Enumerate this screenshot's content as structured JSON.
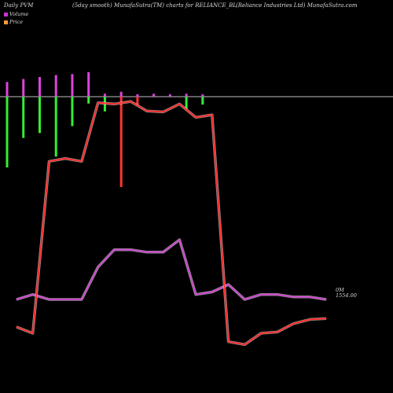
{
  "header": {
    "left": "Daily PVM",
    "center": "(5day smooth) MunafaSutra(TM) charts for RELIANCE_BL",
    "right": "(Reliance  Industries Ltd) MunafaSutra.com"
  },
  "legend": [
    {
      "label": "Volume",
      "color": "#cc33cc"
    },
    {
      "label": "Price",
      "color": "#ff9933"
    }
  ],
  "end_labels": {
    "volume": "0M",
    "price": "1554.00"
  },
  "colors": {
    "background": "#000000",
    "baseline": "#c0c0c0",
    "price_line": "#ff2a2a",
    "price_glow": "#ffffff",
    "volume_line": "#cc44cc",
    "volume_glow": "#ffffff",
    "pvm_up": "#dd44dd",
    "pvm_up_down": "#ff3333",
    "pvm_down": "#33ee33"
  },
  "chart_data": {
    "type": "line",
    "x": [
      1,
      2,
      3,
      4,
      5,
      6,
      7,
      8,
      9,
      10,
      11,
      12,
      13,
      14,
      15,
      16,
      17,
      18,
      19,
      20
    ],
    "series": [
      {
        "name": "Price",
        "values": [
          1560,
          1545,
          1955,
          1962,
          1955,
          2095,
          2092,
          2098,
          2075,
          2073,
          2092,
          2060,
          2066,
          1525,
          1518,
          1545,
          1548,
          1568,
          1578,
          1580
        ]
      },
      {
        "name": "Volume",
        "values": [
          0.6,
          0.8,
          0.6,
          0.6,
          0.6,
          1.9,
          2.6,
          2.6,
          2.5,
          2.5,
          3.0,
          0.8,
          0.9,
          1.2,
          0.6,
          0.8,
          0.8,
          0.7,
          0.7,
          0.6
        ]
      },
      {
        "name": "PVM",
        "up": [
          0.75,
          0.9,
          1.0,
          1.1,
          1.15,
          1.25,
          0.15,
          0.25,
          0.12,
          0.15,
          0.12,
          0.15,
          0.12,
          0,
          0,
          0,
          0,
          0,
          0,
          0
        ],
        "down": [
          -3.6,
          -2.1,
          -1.85,
          -3.05,
          -1.5,
          -0.35,
          -0.75,
          -4.6,
          -0.45,
          0,
          0,
          -0.7,
          -0.4,
          0,
          0,
          0,
          0,
          0,
          0,
          0
        ]
      }
    ]
  }
}
